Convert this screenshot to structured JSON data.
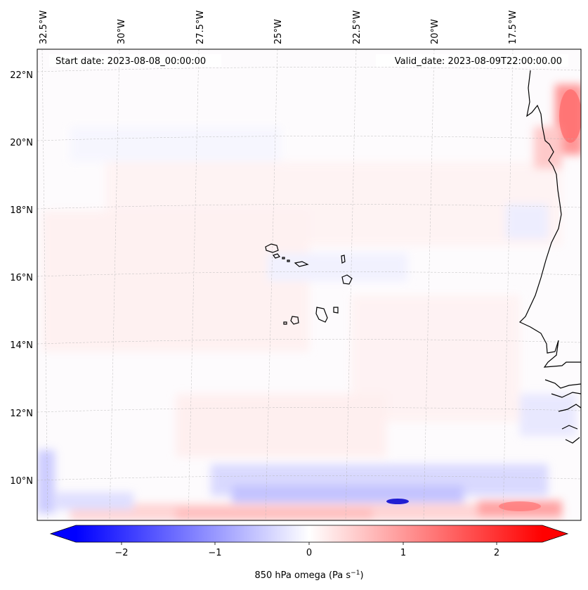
{
  "map": {
    "start_label": "Start date: 2023-08-08_00:00:00",
    "valid_label": "Valid_date: 2023-08-09T22:00:00.00",
    "lon_ticks": [
      "32.5°W",
      "30°W",
      "27.5°W",
      "25°W",
      "22.5°W",
      "20°W",
      "17.5°W"
    ],
    "lat_ticks": [
      "22°N",
      "20°N",
      "18°N",
      "16°N",
      "14°N",
      "12°N",
      "10°N"
    ],
    "colormap": "bwr",
    "gridlines": true
  },
  "colorbar": {
    "ticks": [
      "−2",
      "−1",
      "0",
      "1",
      "2"
    ],
    "label_main": "850 hPa omega (Pa s",
    "label_exp": "−1",
    "label_close": ")",
    "range": [
      -2.6,
      2.6
    ],
    "extend": "both"
  }
}
